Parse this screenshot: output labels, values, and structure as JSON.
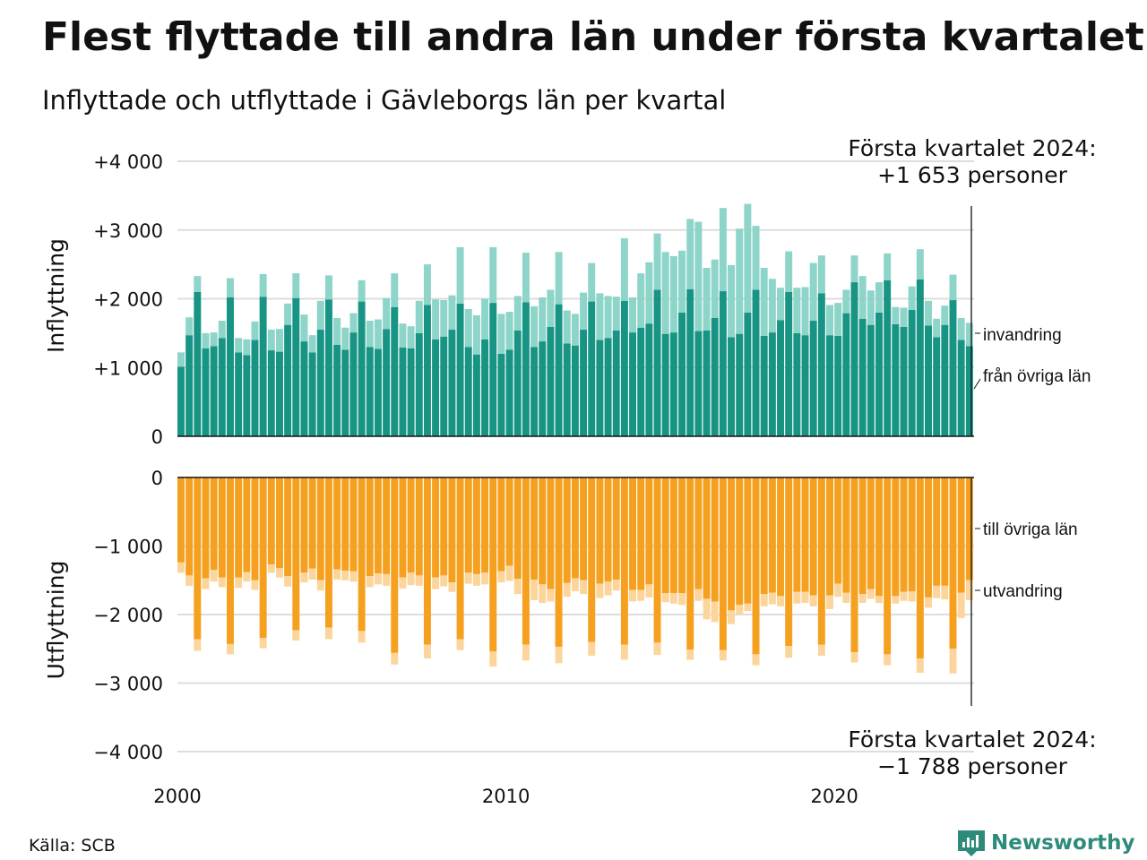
{
  "title": "Flest flyttade till andra län under första kvartalet",
  "subtitle": "Inflyttade och utflyttade i Gävleborgs län per kvartal",
  "source": "Källa: SCB",
  "brand": "Newsworthy",
  "colors": {
    "in_domestic": "#179484",
    "in_immigration": "#8dd4c9",
    "out_domestic": "#f5a01f",
    "out_emigration": "#fbd59b",
    "grid": "#dddddd",
    "brand": "#2e8b7b"
  },
  "chart_data": [
    {
      "type": "bar",
      "stacked": true,
      "panel": "upper",
      "ylabel": "Inflyttning",
      "ylim": [
        0,
        4000
      ],
      "yticks": [
        {
          "value": 0,
          "label": "0"
        },
        {
          "value": 1000,
          "label": "+1 000"
        },
        {
          "value": 2000,
          "label": "+2 000"
        },
        {
          "value": 3000,
          "label": "+3 000"
        },
        {
          "value": 4000,
          "label": "+4 000"
        }
      ],
      "x_start": "2000 Q1",
      "x_end": "2024 Q1",
      "xticks": [
        {
          "value": 2000,
          "label": "2000"
        },
        {
          "value": 2010,
          "label": "2010"
        },
        {
          "value": 2020,
          "label": "2020"
        }
      ],
      "series": [
        {
          "name": "från övriga län",
          "values": [
            1010,
            1470,
            2100,
            1280,
            1310,
            1430,
            2020,
            1220,
            1180,
            1400,
            2030,
            1250,
            1230,
            1620,
            2010,
            1380,
            1220,
            1550,
            1990,
            1330,
            1260,
            1510,
            1960,
            1300,
            1270,
            1560,
            1880,
            1290,
            1280,
            1500,
            1910,
            1410,
            1450,
            1550,
            1930,
            1300,
            1190,
            1410,
            1940,
            1200,
            1260,
            1540,
            1950,
            1300,
            1380,
            1590,
            1920,
            1350,
            1320,
            1550,
            1960,
            1400,
            1430,
            1540,
            1970,
            1510,
            1580,
            1640,
            2130,
            1490,
            1510,
            1800,
            2140,
            1530,
            1540,
            1720,
            2110,
            1440,
            1490,
            1800,
            2130,
            1460,
            1510,
            1690,
            2100,
            1500,
            1470,
            1680,
            2080,
            1470,
            1460,
            1790,
            2240,
            1710,
            1620,
            1800,
            2270,
            1630,
            1590,
            1840,
            2280,
            1610,
            1440,
            1620,
            1980,
            1400,
            1310
          ]
        },
        {
          "name": "invandring",
          "values": [
            210,
            260,
            230,
            220,
            200,
            250,
            280,
            210,
            230,
            270,
            330,
            300,
            330,
            310,
            360,
            390,
            250,
            420,
            350,
            390,
            320,
            280,
            310,
            380,
            430,
            450,
            490,
            350,
            320,
            470,
            590,
            580,
            530,
            500,
            820,
            550,
            570,
            590,
            810,
            580,
            550,
            500,
            720,
            590,
            640,
            540,
            760,
            480,
            460,
            540,
            560,
            680,
            610,
            490,
            910,
            510,
            790,
            890,
            820,
            1190,
            1110,
            900,
            1020,
            1590,
            910,
            850,
            1210,
            1050,
            1530,
            1580,
            930,
            990,
            780,
            470,
            590,
            660,
            700,
            840,
            550,
            440,
            480,
            340,
            390,
            620,
            500,
            440,
            390,
            250,
            280,
            340,
            440,
            360,
            270,
            280,
            370,
            320,
            340
          ]
        }
      ]
    },
    {
      "type": "bar",
      "stacked": true,
      "panel": "lower",
      "ylabel": "Utflyttning",
      "ylim": [
        -4000,
        0
      ],
      "yticks": [
        {
          "value": 0,
          "label": "0"
        },
        {
          "value": -1000,
          "label": "−1 000"
        },
        {
          "value": -2000,
          "label": "−2 000"
        },
        {
          "value": -3000,
          "label": "−3 000"
        },
        {
          "value": -4000,
          "label": "−4 000"
        }
      ],
      "x_start": "2000 Q1",
      "x_end": "2024 Q1",
      "series": [
        {
          "name": "till övriga län",
          "values": [
            -1240,
            -1430,
            -2360,
            -1470,
            -1350,
            -1460,
            -2430,
            -1460,
            -1380,
            -1500,
            -2340,
            -1270,
            -1320,
            -1440,
            -2230,
            -1390,
            -1330,
            -1500,
            -2190,
            -1340,
            -1360,
            -1370,
            -2240,
            -1440,
            -1400,
            -1410,
            -2560,
            -1460,
            -1390,
            -1430,
            -2440,
            -1460,
            -1430,
            -1530,
            -2360,
            -1390,
            -1410,
            -1390,
            -2540,
            -1370,
            -1290,
            -1480,
            -2440,
            -1490,
            -1560,
            -1630,
            -2470,
            -1540,
            -1470,
            -1500,
            -2400,
            -1550,
            -1520,
            -1490,
            -2440,
            -1640,
            -1640,
            -1560,
            -2410,
            -1690,
            -1690,
            -1690,
            -2510,
            -1630,
            -1770,
            -1810,
            -2520,
            -1940,
            -1860,
            -1840,
            -2580,
            -1700,
            -1680,
            -1730,
            -2460,
            -1670,
            -1670,
            -1720,
            -2440,
            -1720,
            -1550,
            -1680,
            -2550,
            -1700,
            -1630,
            -1730,
            -2580,
            -1730,
            -1670,
            -1660,
            -2640,
            -1750,
            -1580,
            -1580,
            -2500,
            -1680,
            -1500
          ]
        },
        {
          "name": "utvandring",
          "values": [
            -150,
            -150,
            -170,
            -160,
            -170,
            -140,
            -150,
            -150,
            -140,
            -140,
            -150,
            -120,
            -140,
            -150,
            -150,
            -140,
            -160,
            -150,
            -170,
            -150,
            -140,
            -150,
            -170,
            -160,
            -160,
            -170,
            -170,
            -160,
            -180,
            -150,
            -200,
            -170,
            -160,
            -140,
            -160,
            -160,
            -170,
            -170,
            -220,
            -160,
            -220,
            -220,
            -230,
            -300,
            -270,
            -180,
            -240,
            -200,
            -190,
            -200,
            -200,
            -210,
            -200,
            -160,
            -220,
            -170,
            -160,
            -190,
            -180,
            -130,
            -150,
            -170,
            -150,
            -170,
            -300,
            -300,
            -150,
            -200,
            -140,
            -110,
            -160,
            -180,
            -170,
            -150,
            -170,
            -170,
            -160,
            -160,
            -160,
            -200,
            -190,
            -150,
            -150,
            -130,
            -140,
            -100,
            -160,
            -110,
            -130,
            -150,
            -210,
            -150,
            -180,
            -200,
            -360,
            -370,
            -290
          ]
        }
      ]
    }
  ],
  "annotations": {
    "top_line1": "Första kvartalet 2024:",
    "top_line2": "+1 653 personer",
    "bottom_line1": "Första kvartalet 2024:",
    "bottom_line2": "−1 788 personer"
  },
  "series_labels": {
    "invandring": "invandring",
    "fran_ovriga": "från övriga län",
    "till_ovriga": "till övriga län",
    "utvandring": "utvandring"
  }
}
